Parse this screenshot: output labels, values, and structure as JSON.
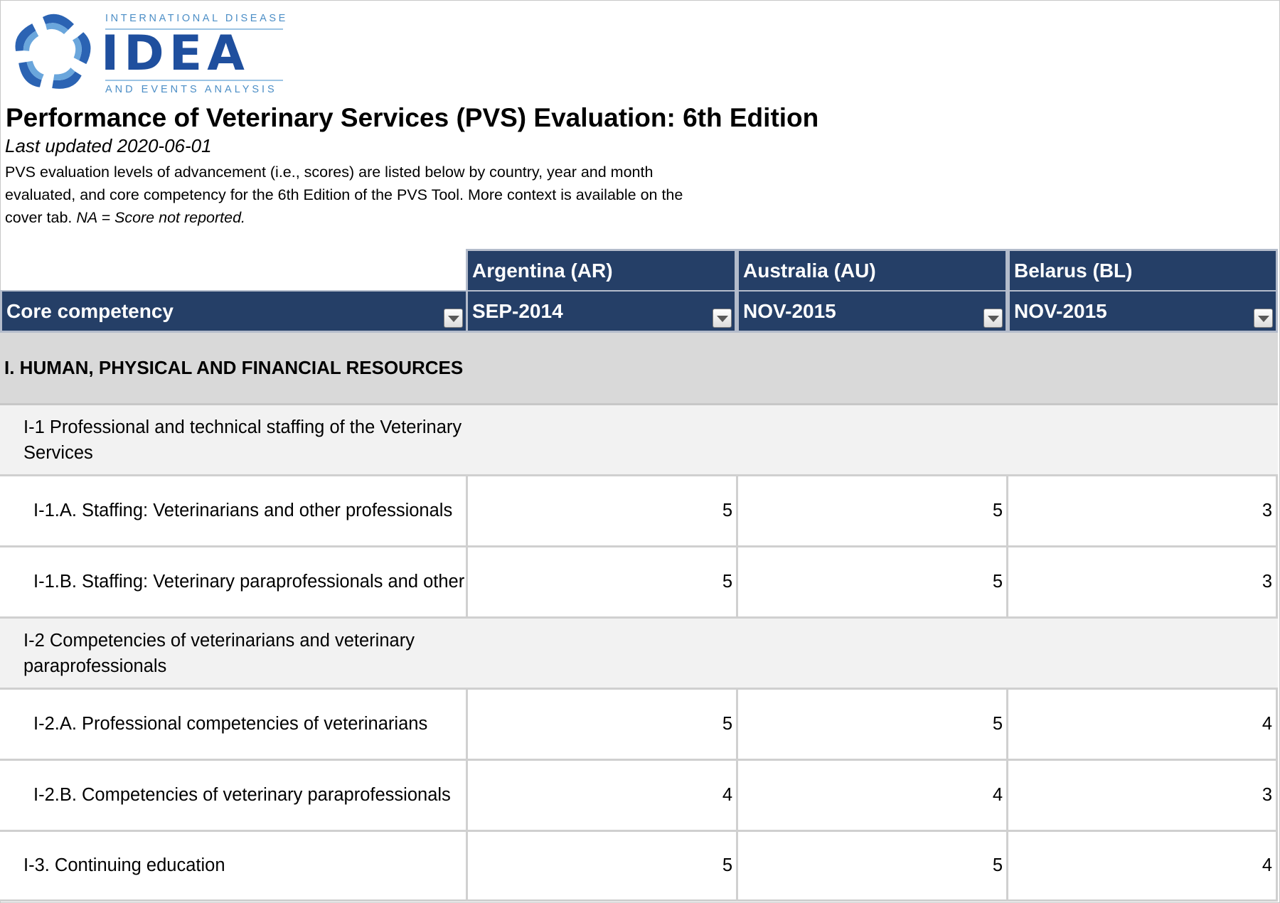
{
  "logo": {
    "top_text": "INTERNATIONAL DISEASE",
    "word": "IDEA",
    "bottom_text": "AND EVENTS ANALYSIS",
    "colors": {
      "dark_blue": "#1f4f9e",
      "light_blue": "#4c8ec6"
    }
  },
  "title": "Performance of Veterinary Services (PVS) Evaluation: 6th Edition",
  "updated": "Last updated 2020-06-01",
  "description": {
    "main": "PVS evaluation levels of advancement (i.e., scores) are listed below by country, year and month evaluated, and core competency for the 6th Edition of the PVS Tool. More context is available on the cover tab.",
    "note": "NA = Score not reported."
  },
  "table": {
    "header_color": "#253f67",
    "core_header": "Core competency",
    "countries": [
      {
        "name": "Argentina (AR)",
        "date": "SEP-2014"
      },
      {
        "name": "Australia (AU)",
        "date": "NOV-2015"
      },
      {
        "name": "Belarus (BL)",
        "date": "NOV-2015"
      }
    ],
    "section": "I. HUMAN, PHYSICAL AND FINANCIAL RESOURCES",
    "rows": [
      {
        "type": "sub",
        "label": "I-1 Professional and technical staffing of the Veterinary Services"
      },
      {
        "type": "item",
        "indent": 2,
        "label": "I-1.A. Staffing: Veterinarians and other professionals",
        "values": [
          "5",
          "5",
          "3"
        ]
      },
      {
        "type": "item",
        "indent": 2,
        "label": "I-1.B. Staffing: Veterinary paraprofessionals and other",
        "values": [
          "5",
          "5",
          "3"
        ]
      },
      {
        "type": "sub",
        "label": "I-2 Competencies of veterinarians and veterinary paraprofessionals"
      },
      {
        "type": "item",
        "indent": 2,
        "label": "I-2.A. Professional competencies of veterinarians",
        "values": [
          "5",
          "5",
          "4"
        ]
      },
      {
        "type": "item",
        "indent": 2,
        "label": "I-2.B. Competencies of veterinary paraprofessionals",
        "values": [
          "4",
          "4",
          "3"
        ]
      },
      {
        "type": "item",
        "indent": 1,
        "label": "I-3. Continuing education",
        "values": [
          "5",
          "5",
          "4"
        ]
      }
    ]
  }
}
